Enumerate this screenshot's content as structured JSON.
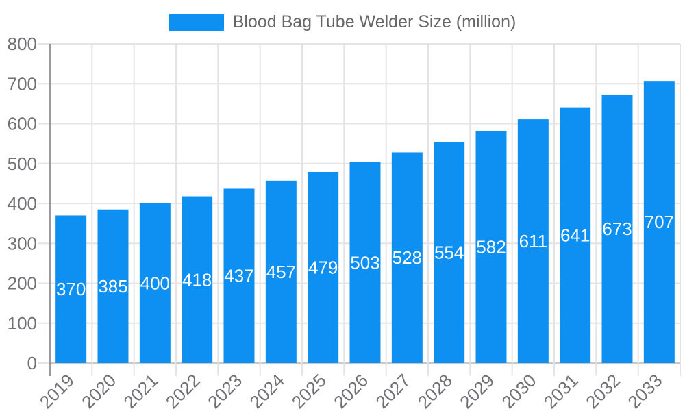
{
  "legend": {
    "label": "Blood Bag Tube Welder Size (million)"
  },
  "chart_data": {
    "type": "bar",
    "title": "Blood Bag Tube Welder Size (million)",
    "categories": [
      "2019",
      "2020",
      "2021",
      "2022",
      "2023",
      "2024",
      "2025",
      "2026",
      "2027",
      "2028",
      "2029",
      "2030",
      "2031",
      "2032",
      "2033"
    ],
    "series": [
      {
        "name": "Blood Bag Tube Welder Size (million)",
        "values": [
          370,
          385,
          400,
          418,
          437,
          457,
          479,
          503,
          528,
          554,
          582,
          611,
          641,
          673,
          707
        ]
      }
    ],
    "xlabel": "",
    "ylabel": "",
    "ylim": [
      0,
      800
    ],
    "ytick_step": 100,
    "grid": true,
    "legend_position": "top",
    "value_labels": "inside-center",
    "x_label_rotation_deg": -45,
    "colors": {
      "bar": "#0e90f2",
      "value_label": "#ffffff",
      "grid": "#e4e4e6",
      "axis_y": "#9a9a9e",
      "axis_x": "#c9c9cc",
      "tick_text": "#6f7174",
      "legend_text": "#666666",
      "background": "#ffffff"
    }
  }
}
